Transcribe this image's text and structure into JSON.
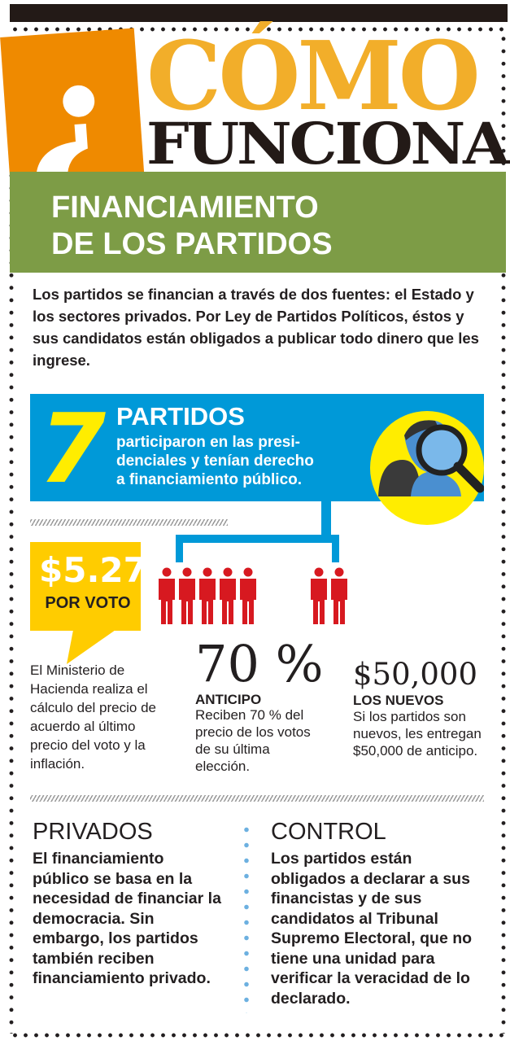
{
  "header": {
    "question_mark": "¿",
    "title_line1": "CÓMO",
    "title_line2": "FUNCIONA"
  },
  "banner": {
    "line1": "FINANCIAMIENTO",
    "line2": "DE LOS PARTIDOS"
  },
  "intro": "Los partidos se financian a través de dos fuentes: el Estado y los sectores privados. Por Ley de Partidos Políticos, éstos y sus candidatos están obligados a publicar todo dinero que les ingrese.",
  "parties": {
    "number": "7",
    "title": "PARTIDOS",
    "text_lines": [
      "participaron en las presi-",
      "denciales y tenían derecho",
      "a financiamiento público."
    ],
    "icon": "people-magnifier-icon"
  },
  "price": {
    "value": "$5.27",
    "label": "POR VOTO",
    "text": "El Ministerio de Hacienda realiza el cálculo del precio de acuerdo al último precio del voto y la inflación."
  },
  "advance": {
    "value": "70 %",
    "label": "ANTICIPO",
    "text": "Reciben 70 % del precio de los votos de su última elección.",
    "figures": 5
  },
  "new_parties": {
    "value": "$50,000",
    "label": "LOS NUEVOS",
    "text": "Si los partidos son nuevos, les entregan $50,000 de anticipo.",
    "figures": 2
  },
  "private": {
    "title": "PRIVADOS",
    "text": "El financiamiento público se basa en la necesidad de financiar la democracia. Sin embargo, los partidos también reciben financiamiento privado."
  },
  "control": {
    "title": "CONTROL",
    "text": "Los partidos están obligados a declarar a sus financistas y de sus candidatos al Tribunal Supremo Electoral, que no tiene una unidad para verificar la veracidad de lo declarado."
  },
  "colors": {
    "orange": "#ef8a00",
    "gold": "#f2ae2a",
    "green": "#7d9c46",
    "blue": "#0099d8",
    "yellow": "#ffed00",
    "red": "#d71920"
  }
}
